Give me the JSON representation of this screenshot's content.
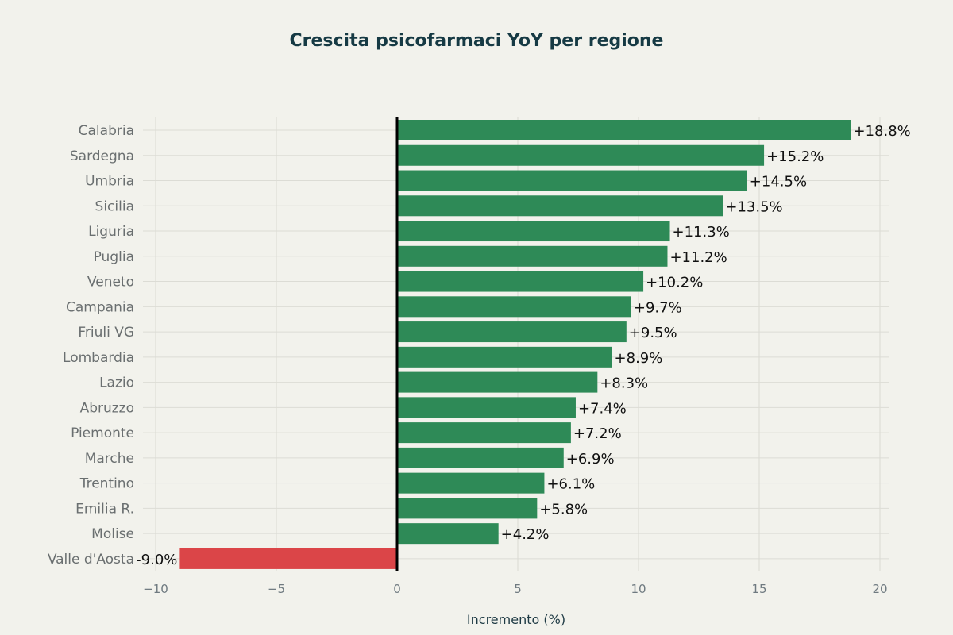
{
  "chart_data": {
    "type": "bar",
    "orientation": "horizontal",
    "title": "Crescita psicofarmaci YoY per regione",
    "xlabel": "Incremento (%)",
    "ylabel": "",
    "xlim": [
      -11,
      20.5
    ],
    "xticks": [
      -10,
      -5,
      0,
      5,
      10,
      15,
      20
    ],
    "xtick_labels": [
      "−10",
      "−5",
      "0",
      "5",
      "10",
      "15",
      "20"
    ],
    "grid": true,
    "categories": [
      "Calabria",
      "Sardegna",
      "Umbria",
      "Sicilia",
      "Liguria",
      "Puglia",
      "Veneto",
      "Campania",
      "Friuli VG",
      "Lombardia",
      "Lazio",
      "Abruzzo",
      "Piemonte",
      "Marche",
      "Trentino",
      "Emilia R.",
      "Molise",
      "Valle d'Aosta"
    ],
    "values": [
      18.8,
      15.2,
      14.5,
      13.5,
      11.3,
      11.2,
      10.2,
      9.7,
      9.5,
      8.9,
      8.3,
      7.4,
      7.2,
      6.9,
      6.1,
      5.8,
      4.2,
      -9.0
    ],
    "data_labels": [
      "+18.8%",
      "+15.2%",
      "+14.5%",
      "+13.5%",
      "+11.3%",
      "+11.2%",
      "+10.2%",
      "+9.7%",
      "+9.5%",
      "+8.9%",
      "+8.3%",
      "+7.4%",
      "+7.2%",
      "+6.9%",
      "+6.1%",
      "+5.8%",
      "+4.2%",
      "-9.0%"
    ],
    "colors": {
      "positive": "#2e8a57",
      "negative": "#db4548"
    }
  }
}
